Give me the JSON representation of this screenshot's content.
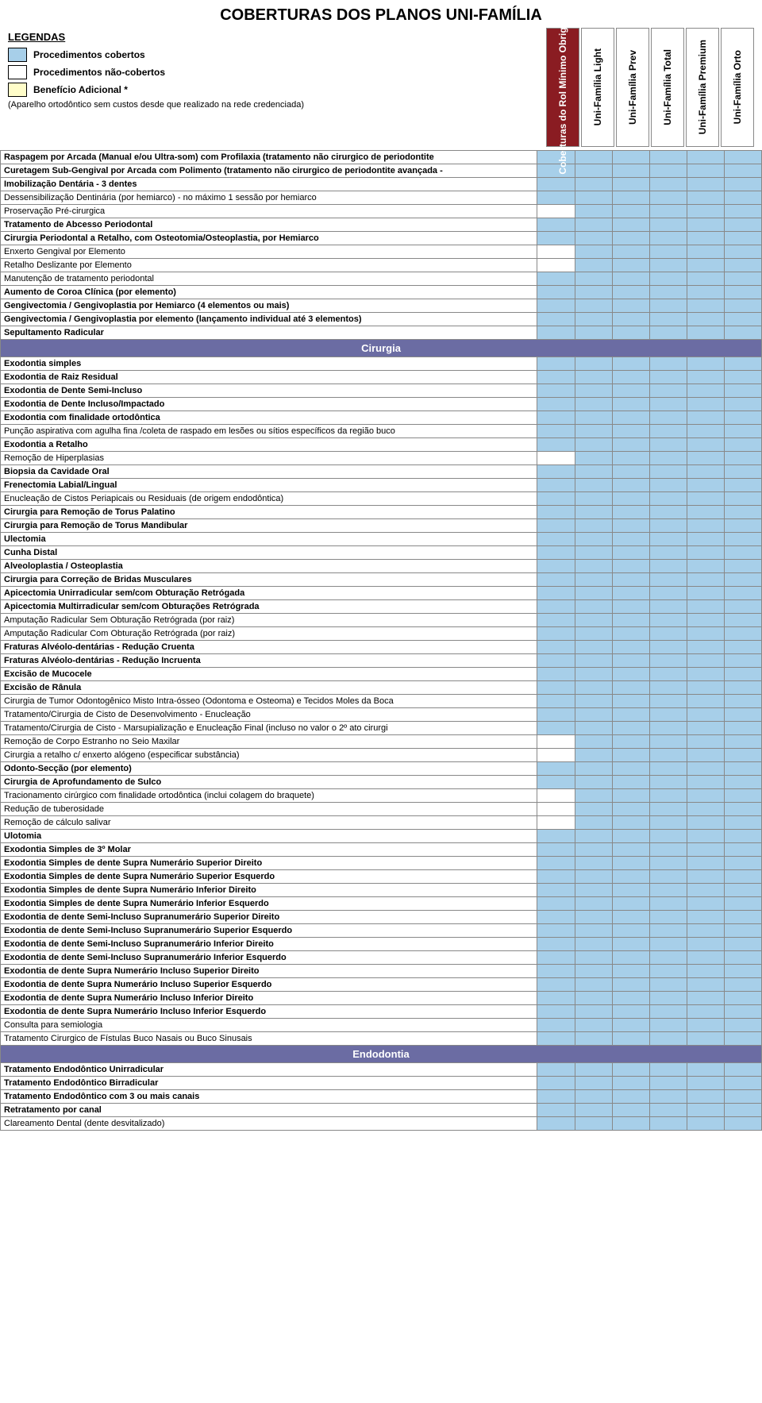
{
  "title": "COBERTURAS DOS PLANOS UNI-FAMÍLIA",
  "legends": {
    "heading": "LEGENDAS",
    "covered_label": "Procedimentos cobertos",
    "noncovered_label": "Procedimentos não-cobertos",
    "bonus_label": "Benefício Adicional *",
    "note": "(Aparelho ortodôntico sem custos desde que realizado na rede credenciada)"
  },
  "colors": {
    "covered": "#a7cfe9",
    "noncovered": "#ffffff",
    "bonus": "#fffdc9",
    "section": "#6b6ca3",
    "plan_highlight": "#8a1c22",
    "border": "#888888"
  },
  "plans": [
    {
      "label": "Coberturas do Rol Mínimo Obrigatório",
      "highlight": true
    },
    {
      "label": "Uni-Família Light",
      "highlight": false
    },
    {
      "label": "Uni-Família Prev",
      "highlight": false
    },
    {
      "label": "Uni-Família Total",
      "highlight": false
    },
    {
      "label": "Uni-Família Premium",
      "highlight": false
    },
    {
      "label": "Uni-Família Orto",
      "highlight": false
    }
  ],
  "rows": [
    {
      "text": "Raspagem por Arcada (Manual e/ou Ultra-som) com Profilaxia (tratamento não cirurgico de periodontite",
      "bold": true,
      "cov": [
        1,
        1,
        1,
        1,
        1,
        1
      ]
    },
    {
      "text": "Curetagem Sub-Gengival por Arcada com Polimento (tratamento não cirurgico de periodontite avançada -",
      "bold": true,
      "cov": [
        1,
        1,
        1,
        1,
        1,
        1
      ]
    },
    {
      "text": "Imobilização Dentária - 3 dentes",
      "bold": true,
      "cov": [
        1,
        1,
        1,
        1,
        1,
        1
      ]
    },
    {
      "text": "Dessensibilização Dentinária (por hemiarco) - no máximo 1 sessão por hemiarco",
      "bold": false,
      "cov": [
        1,
        1,
        1,
        1,
        1,
        1
      ]
    },
    {
      "text": "Proservação Pré-cirurgica",
      "bold": false,
      "cov": [
        0,
        1,
        1,
        1,
        1,
        1
      ]
    },
    {
      "text": "Tratamento de Abcesso Periodontal",
      "bold": true,
      "cov": [
        1,
        1,
        1,
        1,
        1,
        1
      ]
    },
    {
      "text": "Cirurgia Periodontal a Retalho, com Osteotomia/Osteoplastia,  por Hemiarco",
      "bold": true,
      "cov": [
        1,
        1,
        1,
        1,
        1,
        1
      ]
    },
    {
      "text": "Enxerto Gengival por Elemento",
      "bold": false,
      "cov": [
        0,
        1,
        1,
        1,
        1,
        1
      ]
    },
    {
      "text": "Retalho Deslizante por Elemento",
      "bold": false,
      "cov": [
        0,
        1,
        1,
        1,
        1,
        1
      ]
    },
    {
      "text": "Manutenção de tratamento periodontal",
      "bold": false,
      "cov": [
        1,
        1,
        1,
        1,
        1,
        1
      ]
    },
    {
      "text": "Aumento de Coroa Clínica (por elemento)",
      "bold": true,
      "cov": [
        1,
        1,
        1,
        1,
        1,
        1
      ]
    },
    {
      "text": "Gengivectomia / Gengivoplastia por Hemiarco (4 elementos ou mais)",
      "bold": true,
      "cov": [
        1,
        1,
        1,
        1,
        1,
        1
      ]
    },
    {
      "text": "Gengivectomia / Gengivoplastia por elemento (lançamento individual até 3 elementos)",
      "bold": true,
      "cov": [
        1,
        1,
        1,
        1,
        1,
        1
      ]
    },
    {
      "text": "Sepultamento Radicular",
      "bold": true,
      "cov": [
        1,
        1,
        1,
        1,
        1,
        1
      ]
    },
    {
      "section": "Cirurgia"
    },
    {
      "text": "Exodontia simples",
      "bold": true,
      "cov": [
        1,
        1,
        1,
        1,
        1,
        1
      ]
    },
    {
      "text": "Exodontia de Raiz Residual",
      "bold": true,
      "cov": [
        1,
        1,
        1,
        1,
        1,
        1
      ]
    },
    {
      "text": "Exodontia de Dente Semi-Incluso",
      "bold": true,
      "cov": [
        1,
        1,
        1,
        1,
        1,
        1
      ]
    },
    {
      "text": "Exodontia de Dente Incluso/Impactado",
      "bold": true,
      "cov": [
        1,
        1,
        1,
        1,
        1,
        1
      ]
    },
    {
      "text": "Exodontia com finalidade ortodôntica",
      "bold": true,
      "cov": [
        1,
        1,
        1,
        1,
        1,
        1
      ]
    },
    {
      "text": "Punção aspirativa com agulha fina /coleta de raspado em lesões ou sítios específicos da região buco",
      "bold": false,
      "cov": [
        1,
        1,
        1,
        1,
        1,
        1
      ]
    },
    {
      "text": "Exodontia a Retalho",
      "bold": true,
      "cov": [
        1,
        1,
        1,
        1,
        1,
        1
      ]
    },
    {
      "text": "Remoção de Hiperplasias",
      "bold": false,
      "cov": [
        0,
        1,
        1,
        1,
        1,
        1
      ]
    },
    {
      "text": "Biopsia da Cavidade Oral",
      "bold": true,
      "cov": [
        1,
        1,
        1,
        1,
        1,
        1
      ]
    },
    {
      "text": "Frenectomia Labial/Lingual",
      "bold": true,
      "cov": [
        1,
        1,
        1,
        1,
        1,
        1
      ]
    },
    {
      "text": "Enucleação de Cistos Periapicais ou Residuais (de origem endodôntica)",
      "bold": false,
      "cov": [
        1,
        1,
        1,
        1,
        1,
        1
      ]
    },
    {
      "text": "Cirurgia para Remoção de Torus Palatino",
      "bold": true,
      "cov": [
        1,
        1,
        1,
        1,
        1,
        1
      ]
    },
    {
      "text": "Cirurgia para Remoção de Torus Mandibular",
      "bold": true,
      "cov": [
        1,
        1,
        1,
        1,
        1,
        1
      ]
    },
    {
      "text": "Ulectomia",
      "bold": true,
      "cov": [
        1,
        1,
        1,
        1,
        1,
        1
      ]
    },
    {
      "text": "Cunha Distal",
      "bold": true,
      "cov": [
        1,
        1,
        1,
        1,
        1,
        1
      ]
    },
    {
      "text": "Alveoloplastia / Osteoplastia",
      "bold": true,
      "cov": [
        1,
        1,
        1,
        1,
        1,
        1
      ]
    },
    {
      "text": "Cirurgia para Correção de Bridas Musculares",
      "bold": true,
      "cov": [
        1,
        1,
        1,
        1,
        1,
        1
      ]
    },
    {
      "text": "Apicectomia Unirradicular sem/com Obturação Retrógada",
      "bold": true,
      "cov": [
        1,
        1,
        1,
        1,
        1,
        1
      ]
    },
    {
      "text": "Apicectomia Multirradicular sem/com Obturações Retrógrada",
      "bold": true,
      "cov": [
        1,
        1,
        1,
        1,
        1,
        1
      ]
    },
    {
      "text": "Amputação Radicular Sem Obturação Retrógrada (por raiz)",
      "bold": false,
      "cov": [
        1,
        1,
        1,
        1,
        1,
        1
      ]
    },
    {
      "text": "Amputação Radicular Com Obturação Retrógrada (por raiz)",
      "bold": false,
      "cov": [
        1,
        1,
        1,
        1,
        1,
        1
      ]
    },
    {
      "text": "Fraturas Alvéolo-dentárias  -  Redução  Cruenta",
      "bold": true,
      "cov": [
        1,
        1,
        1,
        1,
        1,
        1
      ]
    },
    {
      "text": "Fraturas Alvéolo-dentárias  -  Redução  Incruenta",
      "bold": true,
      "cov": [
        1,
        1,
        1,
        1,
        1,
        1
      ]
    },
    {
      "text": "Excisão de Mucocele",
      "bold": true,
      "cov": [
        1,
        1,
        1,
        1,
        1,
        1
      ]
    },
    {
      "text": "Excisão de Rânula",
      "bold": true,
      "cov": [
        1,
        1,
        1,
        1,
        1,
        1
      ]
    },
    {
      "text": "Cirurgia de Tumor Odontogênico Misto Intra-ósseo (Odontoma e Osteoma) e Tecidos Moles da Boca",
      "bold": false,
      "cov": [
        1,
        1,
        1,
        1,
        1,
        1
      ]
    },
    {
      "text": "Tratamento/Cirurgia de Cisto de Desenvolvimento - Enucleação",
      "bold": false,
      "cov": [
        1,
        1,
        1,
        1,
        1,
        1
      ]
    },
    {
      "text": "Tratamento/Cirurgia de Cisto - Marsupialização e Enucleação Final (incluso no valor o 2º ato cirurgi",
      "bold": false,
      "cov": [
        1,
        1,
        1,
        1,
        1,
        1
      ]
    },
    {
      "text": "Remoção de Corpo Estranho no Seio Maxilar",
      "bold": false,
      "cov": [
        0,
        1,
        1,
        1,
        1,
        1
      ]
    },
    {
      "text": "Cirurgia a retalho c/ enxerto alógeno (especificar substância)",
      "bold": false,
      "cov": [
        0,
        1,
        1,
        1,
        1,
        1
      ]
    },
    {
      "text": "Odonto-Secção (por elemento)",
      "bold": true,
      "cov": [
        1,
        1,
        1,
        1,
        1,
        1
      ]
    },
    {
      "text": "Cirurgia de Aprofundamento de Sulco",
      "bold": true,
      "cov": [
        1,
        1,
        1,
        1,
        1,
        1
      ]
    },
    {
      "text": "Tracionamento cirúrgico com finalidade ortodôntica (inclui colagem do braquete)",
      "bold": false,
      "cov": [
        0,
        1,
        1,
        1,
        1,
        1
      ]
    },
    {
      "text": "Redução de tuberosidade",
      "bold": false,
      "cov": [
        0,
        1,
        1,
        1,
        1,
        1
      ]
    },
    {
      "text": "Remoção de cálculo salivar",
      "bold": false,
      "cov": [
        0,
        1,
        1,
        1,
        1,
        1
      ]
    },
    {
      "text": "Ulotomia",
      "bold": true,
      "cov": [
        1,
        1,
        1,
        1,
        1,
        1
      ]
    },
    {
      "text": "Exodontia Simples  de 3º Molar",
      "bold": true,
      "cov": [
        1,
        1,
        1,
        1,
        1,
        1
      ]
    },
    {
      "text": "Exodontia Simples de dente Supra Numerário Superior Direito",
      "bold": true,
      "cov": [
        1,
        1,
        1,
        1,
        1,
        1
      ]
    },
    {
      "text": "Exodontia Simples de dente Supra Numerário Superior Esquerdo",
      "bold": true,
      "cov": [
        1,
        1,
        1,
        1,
        1,
        1
      ]
    },
    {
      "text": "Exodontia Simples de dente Supra Numerário Inferior Direito",
      "bold": true,
      "cov": [
        1,
        1,
        1,
        1,
        1,
        1
      ]
    },
    {
      "text": "Exodontia Simples de dente Supra Numerário Inferior Esquerdo",
      "bold": true,
      "cov": [
        1,
        1,
        1,
        1,
        1,
        1
      ]
    },
    {
      "text": "Exodontia de dente Semi-Incluso Supranumerário Superior Direito",
      "bold": true,
      "cov": [
        1,
        1,
        1,
        1,
        1,
        1
      ]
    },
    {
      "text": "Exodontia de dente Semi-Incluso Supranumerário Superior Esquerdo",
      "bold": true,
      "cov": [
        1,
        1,
        1,
        1,
        1,
        1
      ]
    },
    {
      "text": "Exodontia de dente Semi-Incluso Supranumerário Inferior Direito",
      "bold": true,
      "cov": [
        1,
        1,
        1,
        1,
        1,
        1
      ]
    },
    {
      "text": "Exodontia de dente Semi-Incluso Supranumerário Inferior Esquerdo",
      "bold": true,
      "cov": [
        1,
        1,
        1,
        1,
        1,
        1
      ]
    },
    {
      "text": "Exodontia de dente Supra Numerário Incluso Superior Direito",
      "bold": true,
      "cov": [
        1,
        1,
        1,
        1,
        1,
        1
      ]
    },
    {
      "text": "Exodontia de dente Supra Numerário Incluso Superior Esquerdo",
      "bold": true,
      "cov": [
        1,
        1,
        1,
        1,
        1,
        1
      ]
    },
    {
      "text": "Exodontia de dente Supra Numerário Incluso Inferior Direito",
      "bold": true,
      "cov": [
        1,
        1,
        1,
        1,
        1,
        1
      ]
    },
    {
      "text": "Exodontia de dente Supra Numerário Incluso Inferior Esquerdo",
      "bold": true,
      "cov": [
        1,
        1,
        1,
        1,
        1,
        1
      ]
    },
    {
      "text": "Consulta para semiologia",
      "bold": false,
      "cov": [
        1,
        1,
        1,
        1,
        1,
        1
      ]
    },
    {
      "text": "Tratamento Cirurgico de Fístulas Buco Nasais ou Buco Sinusais",
      "bold": false,
      "cov": [
        1,
        1,
        1,
        1,
        1,
        1
      ]
    },
    {
      "section": "Endodontia"
    },
    {
      "text": "Tratamento Endodôntico Unirradicular",
      "bold": true,
      "cov": [
        1,
        1,
        1,
        1,
        1,
        1
      ]
    },
    {
      "text": "Tratamento Endodôntico Birradicular",
      "bold": true,
      "cov": [
        1,
        1,
        1,
        1,
        1,
        1
      ]
    },
    {
      "text": "Tratamento Endodôntico com 3 ou mais canais",
      "bold": true,
      "cov": [
        1,
        1,
        1,
        1,
        1,
        1
      ]
    },
    {
      "text": "Retratamento por canal",
      "bold": true,
      "cov": [
        1,
        1,
        1,
        1,
        1,
        1
      ]
    },
    {
      "text": "Clareamento Dental (dente desvitalizado)",
      "bold": false,
      "cov": [
        1,
        1,
        1,
        1,
        1,
        1
      ]
    }
  ]
}
